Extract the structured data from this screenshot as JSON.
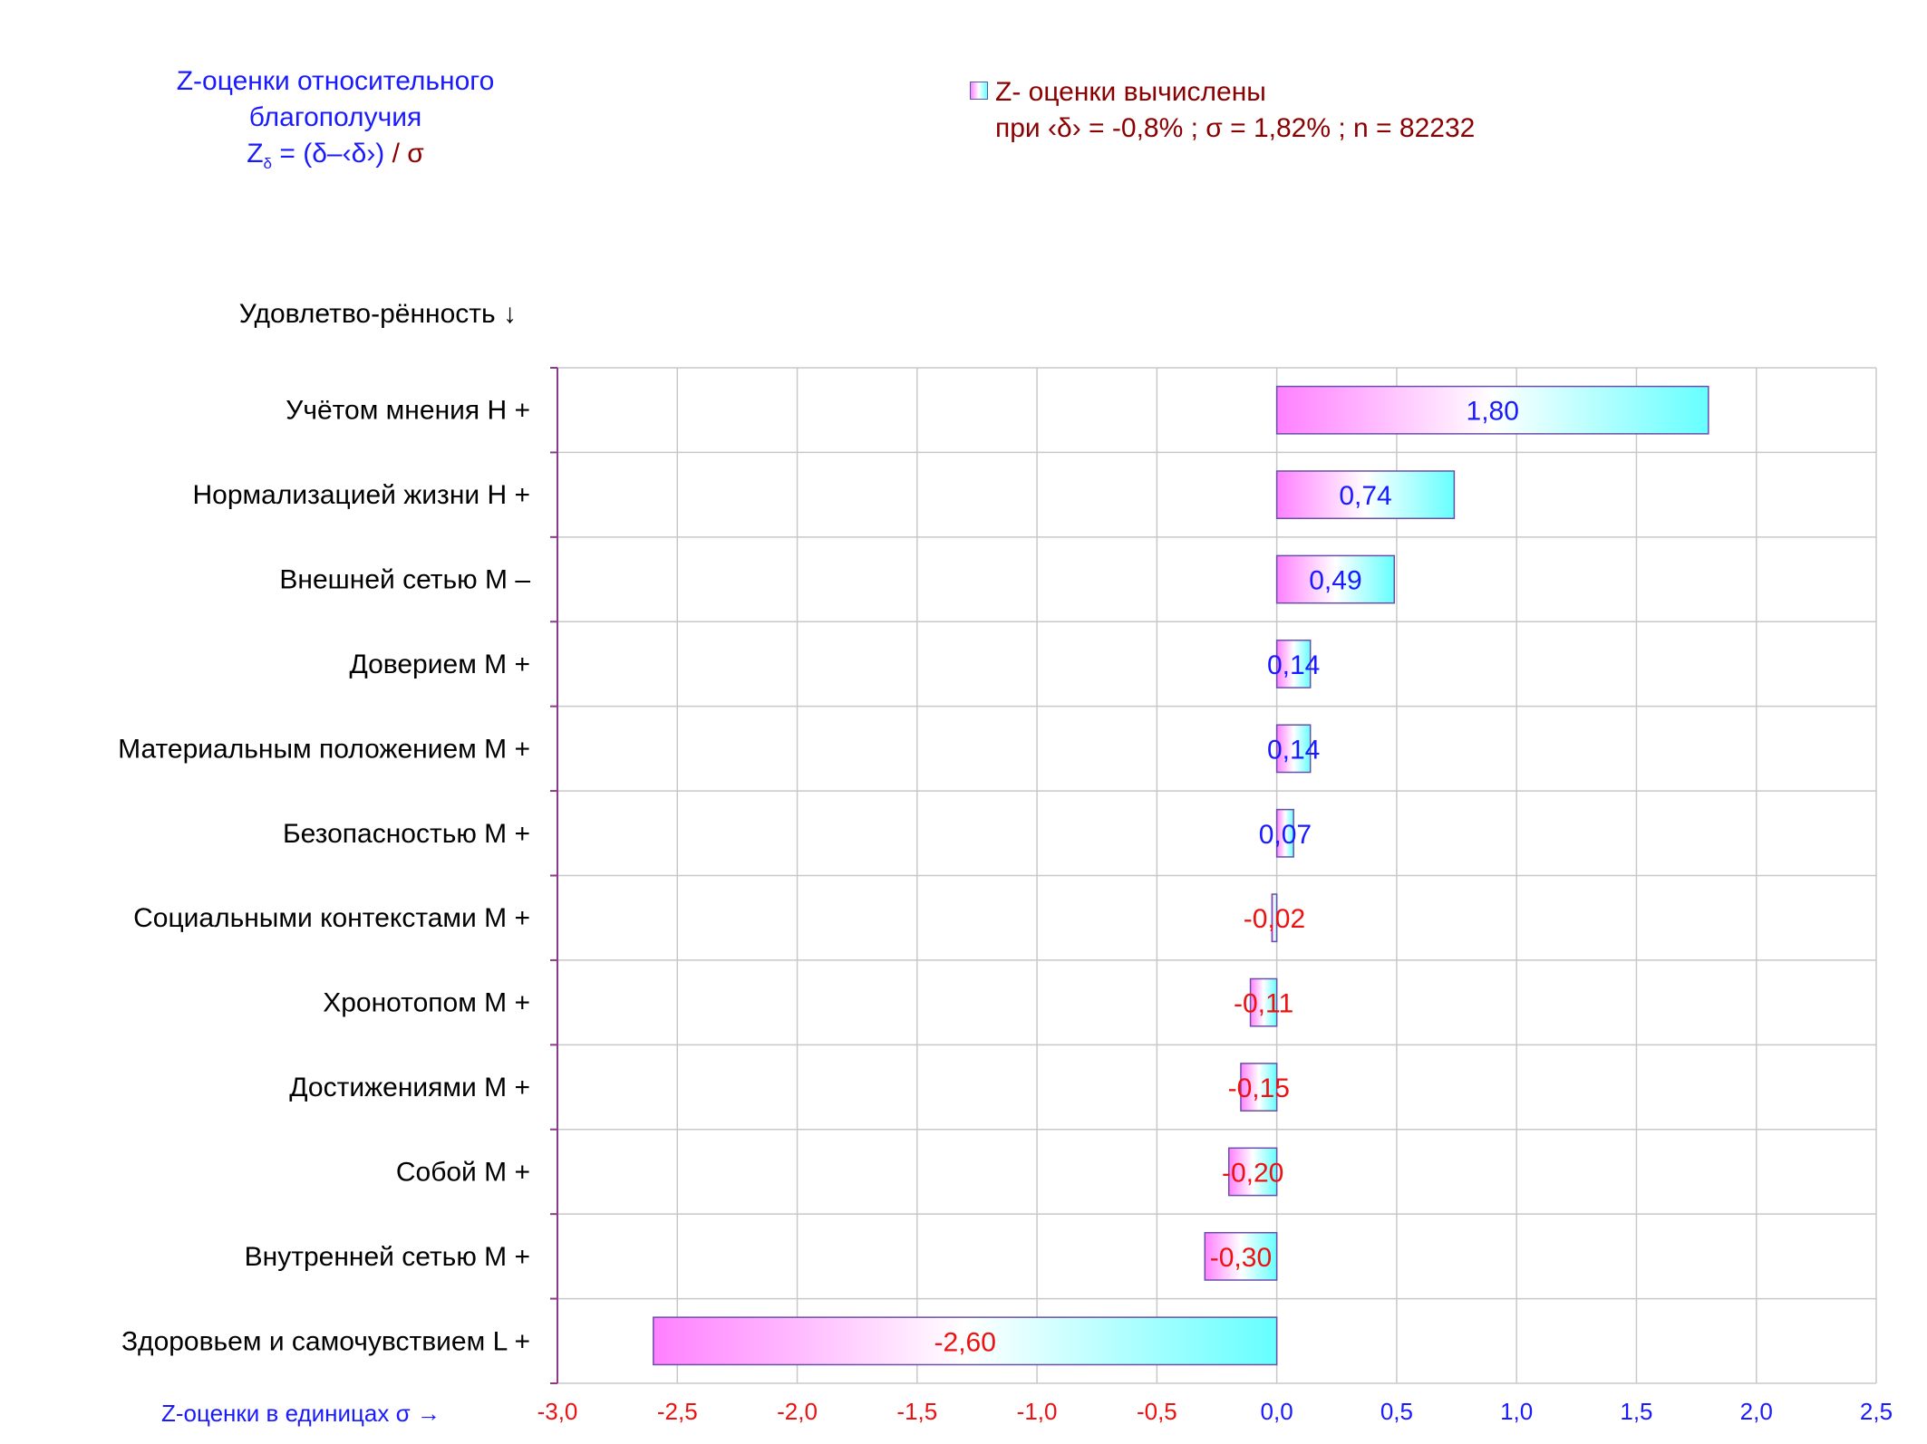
{
  "header": {
    "title_line1": "Z-оценки  относительного",
    "title_line2": "благополучия",
    "formula_z": "Z",
    "formula_sub": "δ",
    "formula_body": "= (δ",
    "formula_mid": "–‹δ",
    "formula_end": "›)",
    "formula_sigma": "/ σ"
  },
  "legend": {
    "line1": "Z- оценки вычислены",
    "line2": "при ‹δ› = -0,8% ; σ = 1,82% ; n = 82232"
  },
  "axis_caption_y": "Удовлетво-рённость ↓",
  "axis_caption_x": "Z-оценки в единицах σ →",
  "colors": {
    "positive_label": "#1a1aff",
    "negative_label": "#ee1111",
    "bar_left": "#ff80ff",
    "bar_mid": "#ffffff",
    "bar_right": "#66ffff",
    "grid": "#c8c8c8",
    "axis": "#8b3a8b"
  },
  "chart_data": {
    "type": "bar",
    "orientation": "horizontal",
    "categories": [
      "Учётом мнения  Н +",
      "Нормализацией жизни  Н +",
      "Внешней сетью  М –",
      "Доверием  М +",
      "Материальным положением  М +",
      "Безопасностью  М +",
      "Социальными контекстами  М +",
      "Хронотопом  М +",
      "Достижениями  М +",
      "Собой  М +",
      "Внутренней сетью  М +",
      "Здоровьем и самочувствием  L +"
    ],
    "values": [
      1.8,
      0.74,
      0.49,
      0.14,
      0.14,
      0.07,
      -0.02,
      -0.11,
      -0.15,
      -0.2,
      -0.3,
      -2.6
    ],
    "value_labels": [
      "1,80",
      "0,74",
      "0,49",
      "0,14",
      "0,14",
      "0,07",
      "-0,02",
      "-0,11",
      "-0,15",
      "-0,20",
      "-0,30",
      "-2,60"
    ],
    "xlim": [
      -3.0,
      2.5
    ],
    "xticks": [
      -3.0,
      -2.5,
      -2.0,
      -1.5,
      -1.0,
      -0.5,
      0.0,
      0.5,
      1.0,
      1.5,
      2.0,
      2.5
    ],
    "xtick_labels": [
      "-3,0",
      "-2,5",
      "-2,0",
      "-1,5",
      "-1,0",
      "-0,5",
      "0,0",
      "0,5",
      "1,0",
      "1,5",
      "2,0",
      "2,5"
    ],
    "grid": true,
    "legend_position": "top-right"
  }
}
